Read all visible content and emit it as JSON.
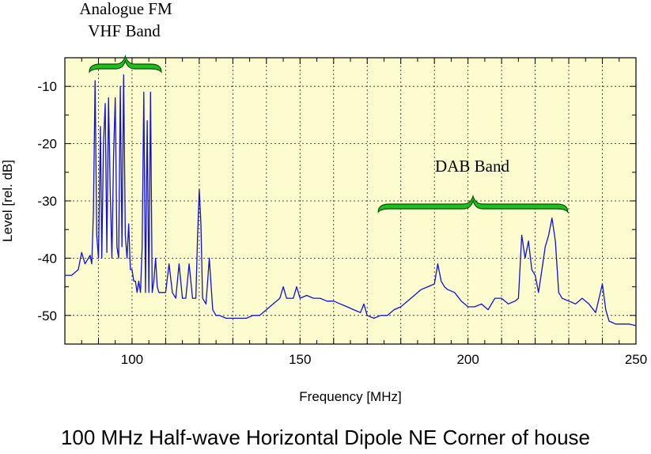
{
  "caption": "100 MHz Half-wave Horizontal Dipole NE Corner of house",
  "chart_data": {
    "type": "line",
    "xlabel": "Frequency [MHz]",
    "ylabel": "Level [rel. dB]",
    "xlim": [
      80,
      250
    ],
    "ylim": [
      -55,
      -5
    ],
    "x_ticks": [
      100,
      150,
      200,
      250
    ],
    "y_ticks": [
      -10,
      -20,
      -30,
      -40,
      -50
    ],
    "grid": true,
    "colors": {
      "plot_background": "#fcfcce",
      "trace": "#1010e0",
      "brace": "#22bb22",
      "grid": "#222222"
    },
    "annotations": [
      {
        "lines": [
          "Analogue FM",
          "VHF Band"
        ],
        "x_range": [
          88,
          108
        ]
      },
      {
        "lines": [
          "DAB Band"
        ],
        "x_range": [
          174,
          229
        ]
      }
    ],
    "series": [
      {
        "x": [
          80,
          82,
          84,
          85,
          86,
          87,
          87.5,
          88,
          88.5,
          89,
          89.5,
          90,
          90.6,
          91,
          91.5,
          92,
          92.5,
          93,
          93.5,
          94,
          94.5,
          95,
          95.5,
          96,
          96.5,
          97,
          97.5,
          98,
          98.5,
          99,
          99.5,
          100,
          100.5,
          101,
          101.5,
          102,
          102.5,
          103,
          103.5,
          104,
          104.5,
          105,
          105.5,
          106,
          106.5,
          107,
          107.5,
          108,
          109,
          110,
          111,
          112,
          113,
          114,
          115,
          116,
          117,
          118,
          119,
          119.5,
          120,
          120.5,
          121,
          122,
          123,
          124,
          125,
          126,
          128,
          130,
          132,
          134,
          136,
          138,
          140,
          142,
          144,
          145,
          146,
          148,
          149,
          150,
          152,
          154,
          156,
          158,
          160,
          162,
          164,
          166,
          168,
          169,
          170,
          172,
          174,
          176,
          178,
          180,
          182,
          184,
          186,
          188,
          190,
          191,
          192,
          193,
          194,
          196,
          198,
          200,
          202,
          204,
          206,
          208,
          210,
          212,
          214,
          215,
          216,
          217,
          218,
          219,
          220,
          221,
          222,
          223,
          224,
          225,
          226,
          227,
          228,
          230,
          232,
          234,
          236,
          238,
          239,
          240,
          241,
          242,
          244,
          246,
          248,
          250
        ],
        "y": [
          -43,
          -43,
          -42,
          -39,
          -41,
          -40,
          -39.5,
          -41,
          -32,
          -9,
          -36,
          -40,
          -17,
          -40,
          -20,
          -13,
          -39,
          -12,
          -28,
          -40,
          -22,
          -12,
          -38,
          -40,
          -10,
          -38,
          -8,
          -36,
          -40,
          -34,
          -42,
          -42,
          -44,
          -44,
          -46,
          -44,
          -46,
          -38,
          -11,
          -46,
          -16,
          -46,
          -11,
          -46,
          -44,
          -40,
          -45,
          -46,
          -46,
          -46,
          -41,
          -46,
          -47,
          -41,
          -47,
          -47,
          -41,
          -47,
          -47,
          -36,
          -28,
          -34,
          -47,
          -48,
          -40,
          -49,
          -50,
          -50,
          -50.5,
          -50.5,
          -50.5,
          -50.5,
          -50,
          -50,
          -49,
          -48,
          -47,
          -45,
          -47,
          -47,
          -45,
          -47,
          -46.5,
          -47,
          -47,
          -47.5,
          -47.5,
          -48,
          -48.5,
          -49,
          -49.5,
          -48,
          -50,
          -50.5,
          -50,
          -50,
          -49,
          -48.5,
          -47.5,
          -46.5,
          -45.5,
          -45,
          -44.5,
          -41,
          -44,
          -45,
          -45.5,
          -46,
          -47.5,
          -48.5,
          -48.5,
          -48,
          -49,
          -47,
          -47,
          -48,
          -47.5,
          -47,
          -36,
          -40,
          -37,
          -42,
          -43,
          -46,
          -42,
          -38,
          -36,
          -33,
          -37,
          -46,
          -47,
          -47.5,
          -48,
          -47,
          -48,
          -49.5,
          -47,
          -44.5,
          -49,
          -51,
          -51.5,
          -51.5,
          -51.5,
          -51.8
        ]
      }
    ]
  }
}
